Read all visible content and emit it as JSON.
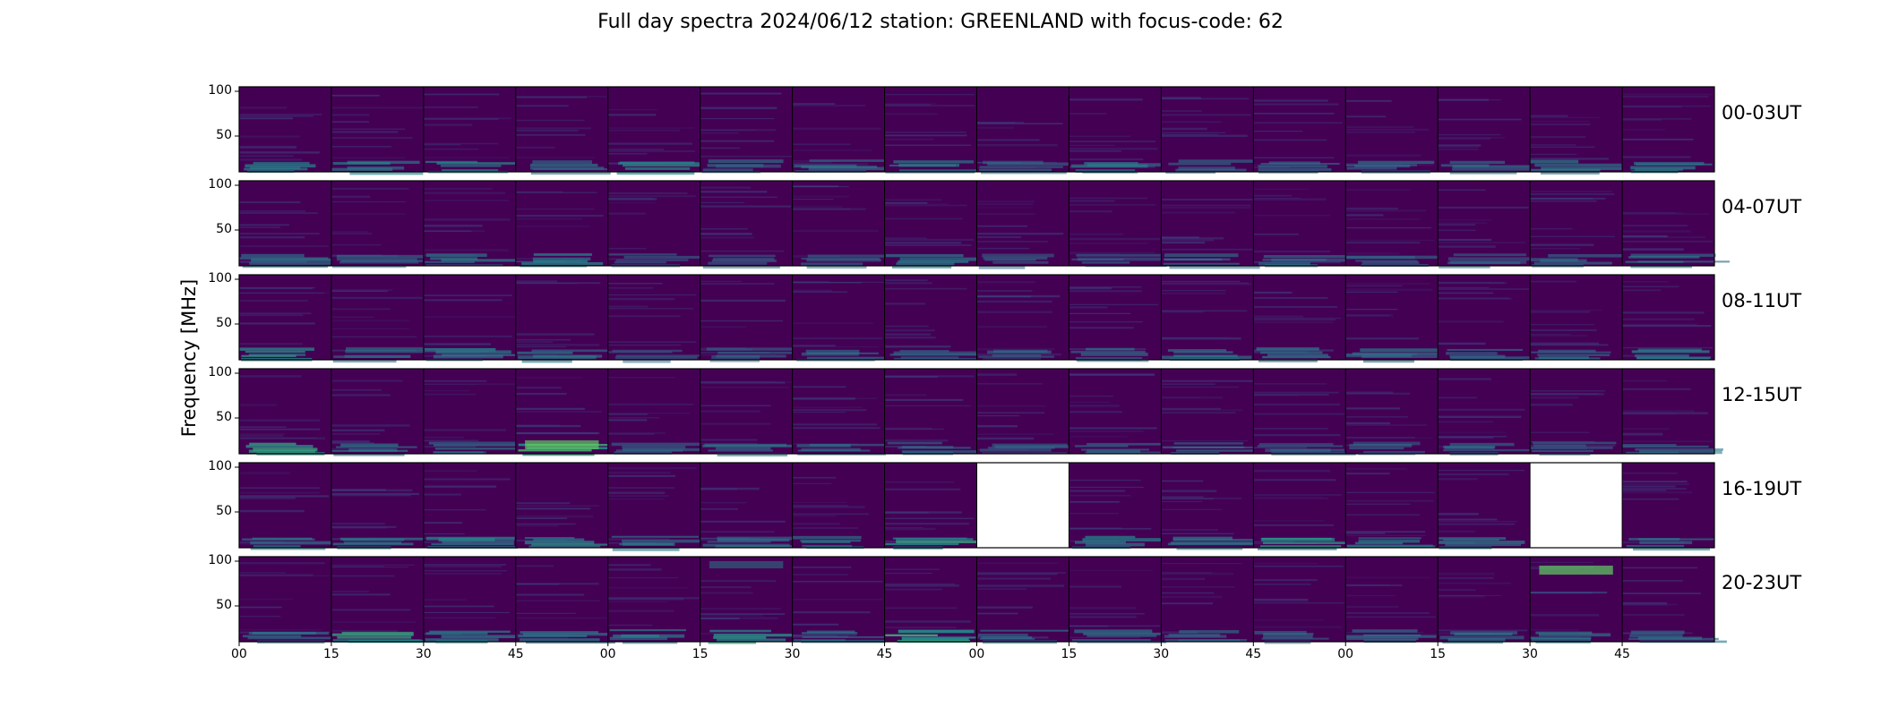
{
  "title": "Full day spectra 2024/06/12 station: GREENLAND with focus-code: 62",
  "colors": {
    "background": "#440154",
    "mid": "#3b528b",
    "teal": "#21918c",
    "green": "#5ec962",
    "empty": "#ffffff",
    "frame": "#000000"
  },
  "chart_data": {
    "type": "heatmap",
    "title": "Full day spectra 2024/06/12 station: GREENLAND with focus-code: 62",
    "xlabel": "",
    "ylabel": "Frequency [MHz]",
    "colormap": "viridis",
    "ylim": [
      10,
      105
    ],
    "y_ticks": [
      100,
      50
    ],
    "x_ticks": [
      "00",
      "15",
      "30",
      "45",
      "00",
      "15",
      "30",
      "45",
      "00",
      "15",
      "30",
      "45",
      "00",
      "15",
      "30",
      "45"
    ],
    "panels_per_row": 16,
    "panel_minutes": 15,
    "rows": [
      {
        "label": "00-03UT",
        "missing_panels": []
      },
      {
        "label": "04-07UT",
        "missing_panels": []
      },
      {
        "label": "08-11UT",
        "missing_panels": []
      },
      {
        "label": "12-15UT",
        "missing_panels": []
      },
      {
        "label": "16-19UT",
        "missing_panels": [
          8,
          14
        ]
      },
      {
        "label": "20-23UT",
        "missing_panels": []
      }
    ],
    "low_band_activity": [
      [
        0.55,
        0.5,
        0.6,
        0.45,
        0.6,
        0.4,
        0.45,
        0.5,
        0.4,
        0.45,
        0.4,
        0.45,
        0.45,
        0.45,
        0.5,
        0.55
      ],
      [
        0.5,
        0.35,
        0.5,
        0.6,
        0.3,
        0.35,
        0.35,
        0.55,
        0.3,
        0.35,
        0.4,
        0.4,
        0.35,
        0.35,
        0.4,
        0.5
      ],
      [
        0.65,
        0.4,
        0.55,
        0.45,
        0.3,
        0.35,
        0.4,
        0.35,
        0.35,
        0.4,
        0.45,
        0.55,
        0.45,
        0.4,
        0.45,
        0.55
      ],
      [
        0.7,
        0.5,
        0.45,
        0.9,
        0.35,
        0.45,
        0.4,
        0.35,
        0.3,
        0.4,
        0.4,
        0.35,
        0.35,
        0.35,
        0.35,
        0.4
      ],
      [
        0.55,
        0.5,
        0.55,
        0.6,
        0.45,
        0.45,
        0.5,
        0.75,
        0.0,
        0.55,
        0.5,
        0.65,
        0.5,
        0.5,
        0.0,
        0.5
      ],
      [
        0.45,
        0.7,
        0.55,
        0.55,
        0.5,
        0.75,
        0.5,
        0.95,
        0.45,
        0.45,
        0.4,
        0.4,
        0.45,
        0.45,
        0.45,
        0.45
      ]
    ],
    "high_band_bursts": [
      {
        "row": 5,
        "panel": 14,
        "freq_range": [
          85,
          95
        ],
        "intensity": 0.85
      },
      {
        "row": 5,
        "panel": 5,
        "freq_range": [
          92,
          100
        ],
        "intensity": 0.35
      },
      {
        "row": 3,
        "panel": 3,
        "freq_range": [
          15,
          25
        ],
        "intensity": 0.8
      }
    ]
  },
  "row_labels": [
    "00-03UT",
    "04-07UT",
    "08-11UT",
    "12-15UT",
    "16-19UT",
    "20-23UT"
  ]
}
